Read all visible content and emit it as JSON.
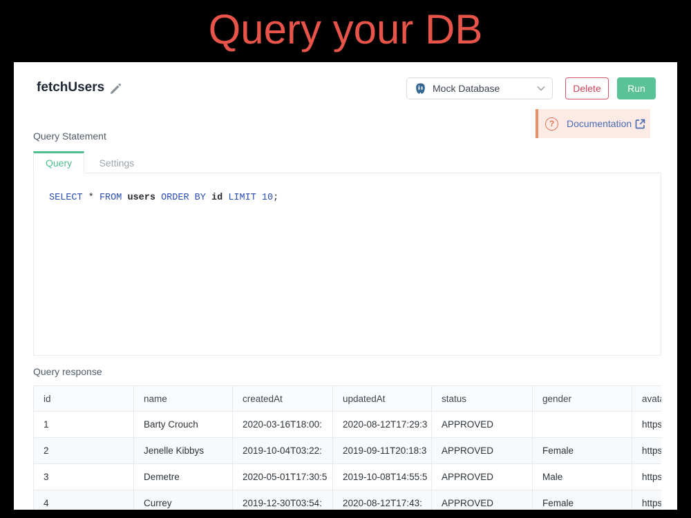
{
  "page_title": "Query your DB",
  "header": {
    "query_name": "fetchUsers",
    "datasource": {
      "label": "Mock Database",
      "icon": "postgresql-icon"
    },
    "delete_label": "Delete",
    "run_label": "Run"
  },
  "documentation": {
    "label": "Documentation",
    "help_icon": "question-circle-icon",
    "open_icon": "external-link-icon"
  },
  "editor": {
    "section_label": "Query Statement",
    "tabs": [
      {
        "label": "Query",
        "active": true
      },
      {
        "label": "Settings",
        "active": false
      }
    ],
    "sql_tokens": [
      {
        "text": "SELECT",
        "type": "keyword"
      },
      {
        "text": " ",
        "type": "op"
      },
      {
        "text": "*",
        "type": "op"
      },
      {
        "text": " ",
        "type": "op"
      },
      {
        "text": "FROM",
        "type": "keyword"
      },
      {
        "text": " ",
        "type": "op"
      },
      {
        "text": "users",
        "type": "plain"
      },
      {
        "text": " ",
        "type": "op"
      },
      {
        "text": "ORDER BY",
        "type": "keyword"
      },
      {
        "text": " ",
        "type": "op"
      },
      {
        "text": "id",
        "type": "plain"
      },
      {
        "text": " ",
        "type": "op"
      },
      {
        "text": "LIMIT 10",
        "type": "keyword"
      },
      {
        "text": ";",
        "type": "op"
      }
    ]
  },
  "response": {
    "section_label": "Query response",
    "table": {
      "columns": [
        "id",
        "name",
        "createdAt",
        "updatedAt",
        "status",
        "gender",
        "avatar"
      ],
      "rows": [
        [
          "1",
          "Barty Crouch",
          "2020-03-16T18:00:",
          "2020-08-12T17:29:3",
          "APPROVED",
          "",
          "https://"
        ],
        [
          "2",
          "Jenelle Kibbys",
          "2019-10-04T03:22:",
          "2019-09-11T20:18:3",
          "APPROVED",
          "Female",
          "https://"
        ],
        [
          "3",
          "Demetre",
          "2020-05-01T17:30:5",
          "2019-10-08T14:55:5",
          "APPROVED",
          "Male",
          "https://"
        ],
        [
          "4",
          "Currey",
          "2019-12-30T03:54:",
          "2020-08-12T17:43:",
          "APPROVED",
          "Female",
          "https://"
        ]
      ]
    }
  },
  "colors": {
    "title_red": "#e8544a",
    "run_green": "#5bc298",
    "delete_red": "#ce4257",
    "active_tab_green": "#4fbd8e",
    "doc_banner_bg": "#fcebe5",
    "doc_banner_border": "#e98e68",
    "doc_link_blue": "#4a6cb3",
    "sql_keyword_blue": "#2a4bb0",
    "background_black": "#000000",
    "panel_white": "#ffffff"
  }
}
